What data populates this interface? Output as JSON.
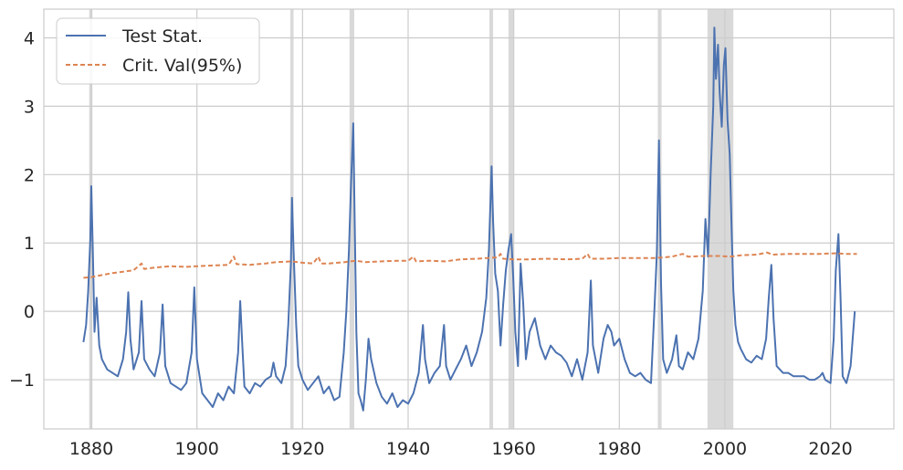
{
  "chart_data": {
    "type": "line",
    "title": "",
    "xlabel": "",
    "ylabel": "",
    "xlim": [
      1871,
      2032
    ],
    "ylim": [
      -1.72,
      4.42
    ],
    "x_ticks": [
      1880,
      1900,
      1920,
      1940,
      1960,
      1980,
      2000,
      2020
    ],
    "x_tick_labels": [
      "1880",
      "1900",
      "1920",
      "1940",
      "1960",
      "1980",
      "2000",
      "2020"
    ],
    "y_ticks": [
      -1,
      0,
      1,
      2,
      3,
      4
    ],
    "y_tick_labels": [
      "−1",
      "0",
      "1",
      "2",
      "3",
      "4"
    ],
    "grid": true,
    "legend_position": "top-left",
    "shaded_periods": [
      [
        1879.6,
        1880.2
      ],
      [
        1917.7,
        1918.3
      ],
      [
        1928.9,
        1929.8
      ],
      [
        1955.4,
        1956.1
      ],
      [
        1959.0,
        1959.9
      ],
      [
        1987.3,
        1988.0
      ],
      [
        1996.7,
        2001.6
      ]
    ],
    "shade_color": "#d9d9d9",
    "series": [
      {
        "name": "Test Stat.",
        "color": "#4c72b0",
        "style": "solid",
        "points": [
          [
            1878.5,
            -0.45
          ],
          [
            1879.0,
            -0.2
          ],
          [
            1879.4,
            0.3
          ],
          [
            1879.8,
            1.05
          ],
          [
            1880.0,
            1.83
          ],
          [
            1880.3,
            0.8
          ],
          [
            1880.6,
            -0.3
          ],
          [
            1881.0,
            0.2
          ],
          [
            1881.5,
            -0.5
          ],
          [
            1882.0,
            -0.7
          ],
          [
            1883.0,
            -0.85
          ],
          [
            1884.0,
            -0.9
          ],
          [
            1885.0,
            -0.95
          ],
          [
            1886.0,
            -0.7
          ],
          [
            1886.6,
            -0.3
          ],
          [
            1887.0,
            0.28
          ],
          [
            1887.4,
            -0.4
          ],
          [
            1888.0,
            -0.85
          ],
          [
            1889.0,
            -0.6
          ],
          [
            1889.5,
            0.15
          ],
          [
            1890.0,
            -0.7
          ],
          [
            1891.0,
            -0.85
          ],
          [
            1892.0,
            -0.95
          ],
          [
            1893.0,
            -0.6
          ],
          [
            1893.5,
            0.1
          ],
          [
            1894.0,
            -0.8
          ],
          [
            1895.0,
            -1.05
          ],
          [
            1896.0,
            -1.1
          ],
          [
            1897.0,
            -1.15
          ],
          [
            1898.0,
            -1.05
          ],
          [
            1899.0,
            -0.6
          ],
          [
            1899.5,
            0.35
          ],
          [
            1900.0,
            -0.7
          ],
          [
            1901.0,
            -1.2
          ],
          [
            1902.0,
            -1.3
          ],
          [
            1903.0,
            -1.4
          ],
          [
            1904.0,
            -1.2
          ],
          [
            1905.0,
            -1.3
          ],
          [
            1906.0,
            -1.1
          ],
          [
            1907.0,
            -1.2
          ],
          [
            1907.8,
            -0.6
          ],
          [
            1908.2,
            0.15
          ],
          [
            1908.6,
            -0.5
          ],
          [
            1909.0,
            -1.1
          ],
          [
            1910.0,
            -1.2
          ],
          [
            1911.0,
            -1.05
          ],
          [
            1912.0,
            -1.1
          ],
          [
            1913.0,
            -1.0
          ],
          [
            1914.0,
            -0.95
          ],
          [
            1914.5,
            -0.75
          ],
          [
            1915.0,
            -0.95
          ],
          [
            1916.0,
            -1.05
          ],
          [
            1916.8,
            -0.8
          ],
          [
            1917.3,
            -0.2
          ],
          [
            1917.8,
            0.7
          ],
          [
            1918.0,
            1.66
          ],
          [
            1918.3,
            0.9
          ],
          [
            1918.8,
            -0.2
          ],
          [
            1919.2,
            -0.8
          ],
          [
            1920.0,
            -1.0
          ],
          [
            1921.0,
            -1.15
          ],
          [
            1922.0,
            -1.05
          ],
          [
            1923.0,
            -0.95
          ],
          [
            1924.0,
            -1.2
          ],
          [
            1925.0,
            -1.1
          ],
          [
            1926.0,
            -1.3
          ],
          [
            1927.0,
            -1.25
          ],
          [
            1927.8,
            -0.6
          ],
          [
            1928.3,
            0.0
          ],
          [
            1928.8,
            0.9
          ],
          [
            1929.2,
            1.87
          ],
          [
            1929.6,
            2.75
          ],
          [
            1929.9,
            1.2
          ],
          [
            1930.2,
            -0.3
          ],
          [
            1930.6,
            -1.2
          ],
          [
            1931.0,
            -1.3
          ],
          [
            1931.5,
            -1.45
          ],
          [
            1932.0,
            -1.0
          ],
          [
            1932.5,
            -0.4
          ],
          [
            1933.0,
            -0.7
          ],
          [
            1934.0,
            -1.05
          ],
          [
            1935.0,
            -1.25
          ],
          [
            1936.0,
            -1.35
          ],
          [
            1937.0,
            -1.2
          ],
          [
            1938.0,
            -1.4
          ],
          [
            1939.0,
            -1.3
          ],
          [
            1940.0,
            -1.35
          ],
          [
            1941.0,
            -1.2
          ],
          [
            1942.0,
            -0.9
          ],
          [
            1942.8,
            -0.2
          ],
          [
            1943.2,
            -0.7
          ],
          [
            1944.0,
            -1.05
          ],
          [
            1945.0,
            -0.9
          ],
          [
            1946.0,
            -0.8
          ],
          [
            1946.8,
            -0.2
          ],
          [
            1947.2,
            -0.8
          ],
          [
            1948.0,
            -1.0
          ],
          [
            1949.0,
            -0.85
          ],
          [
            1950.0,
            -0.7
          ],
          [
            1951.0,
            -0.5
          ],
          [
            1952.0,
            -0.8
          ],
          [
            1953.0,
            -0.6
          ],
          [
            1954.0,
            -0.3
          ],
          [
            1954.8,
            0.2
          ],
          [
            1955.3,
            0.9
          ],
          [
            1955.8,
            2.12
          ],
          [
            1956.1,
            1.3
          ],
          [
            1956.5,
            0.55
          ],
          [
            1957.0,
            0.3
          ],
          [
            1957.5,
            -0.5
          ],
          [
            1958.0,
            0.1
          ],
          [
            1958.5,
            0.6
          ],
          [
            1959.0,
            0.9
          ],
          [
            1959.5,
            1.13
          ],
          [
            1959.9,
            0.5
          ],
          [
            1960.3,
            -0.3
          ],
          [
            1960.8,
            -0.8
          ],
          [
            1961.3,
            0.7
          ],
          [
            1961.8,
            0.1
          ],
          [
            1962.3,
            -0.7
          ],
          [
            1963.0,
            -0.3
          ],
          [
            1964.0,
            -0.1
          ],
          [
            1965.0,
            -0.5
          ],
          [
            1966.0,
            -0.7
          ],
          [
            1967.0,
            -0.5
          ],
          [
            1968.0,
            -0.6
          ],
          [
            1969.0,
            -0.65
          ],
          [
            1970.0,
            -0.75
          ],
          [
            1971.0,
            -0.95
          ],
          [
            1972.0,
            -0.7
          ],
          [
            1973.0,
            -1.0
          ],
          [
            1974.0,
            -0.6
          ],
          [
            1974.6,
            0.45
          ],
          [
            1975.0,
            -0.5
          ],
          [
            1976.0,
            -0.9
          ],
          [
            1977.0,
            -0.4
          ],
          [
            1977.8,
            -0.2
          ],
          [
            1978.5,
            -0.3
          ],
          [
            1979.0,
            -0.5
          ],
          [
            1980.0,
            -0.4
          ],
          [
            1981.0,
            -0.7
          ],
          [
            1982.0,
            -0.9
          ],
          [
            1983.0,
            -0.95
          ],
          [
            1984.0,
            -0.9
          ],
          [
            1985.0,
            -1.0
          ],
          [
            1986.0,
            -1.05
          ],
          [
            1986.7,
            0.1
          ],
          [
            1987.1,
            0.85
          ],
          [
            1987.5,
            2.5
          ],
          [
            1987.9,
            0.4
          ],
          [
            1988.3,
            -0.7
          ],
          [
            1989.0,
            -0.9
          ],
          [
            1990.0,
            -0.7
          ],
          [
            1990.8,
            -0.35
          ],
          [
            1991.3,
            -0.8
          ],
          [
            1992.0,
            -0.85
          ],
          [
            1993.0,
            -0.6
          ],
          [
            1994.0,
            -0.7
          ],
          [
            1995.0,
            -0.4
          ],
          [
            1995.8,
            0.3
          ],
          [
            1996.3,
            1.35
          ],
          [
            1996.8,
            0.8
          ],
          [
            1997.3,
            2.0
          ],
          [
            1997.8,
            3.0
          ],
          [
            1998.0,
            4.15
          ],
          [
            1998.3,
            3.4
          ],
          [
            1998.7,
            3.9
          ],
          [
            1999.0,
            3.2
          ],
          [
            1999.4,
            2.7
          ],
          [
            1999.8,
            3.6
          ],
          [
            2000.1,
            3.85
          ],
          [
            2000.5,
            2.8
          ],
          [
            2000.9,
            2.3
          ],
          [
            2001.3,
            1.1
          ],
          [
            2001.6,
            0.3
          ],
          [
            2002.0,
            -0.2
          ],
          [
            2002.5,
            -0.45
          ],
          [
            2003.0,
            -0.55
          ],
          [
            2004.0,
            -0.7
          ],
          [
            2005.0,
            -0.75
          ],
          [
            2006.0,
            -0.65
          ],
          [
            2007.0,
            -0.7
          ],
          [
            2007.8,
            -0.4
          ],
          [
            2008.3,
            0.2
          ],
          [
            2008.8,
            0.68
          ],
          [
            2009.2,
            -0.1
          ],
          [
            2009.8,
            -0.8
          ],
          [
            2011.0,
            -0.9
          ],
          [
            2012.0,
            -0.9
          ],
          [
            2013.0,
            -0.95
          ],
          [
            2014.0,
            -0.95
          ],
          [
            2015.0,
            -0.95
          ],
          [
            2016.0,
            -1.0
          ],
          [
            2017.0,
            -1.0
          ],
          [
            2018.0,
            -0.95
          ],
          [
            2018.5,
            -0.9
          ],
          [
            2019.0,
            -1.0
          ],
          [
            2020.0,
            -1.05
          ],
          [
            2020.6,
            -0.4
          ],
          [
            2021.0,
            0.6
          ],
          [
            2021.5,
            1.13
          ],
          [
            2021.9,
            0.2
          ],
          [
            2022.3,
            -0.95
          ],
          [
            2023.0,
            -1.05
          ],
          [
            2023.8,
            -0.8
          ],
          [
            2024.2,
            -0.4
          ],
          [
            2024.6,
            0.0
          ]
        ]
      },
      {
        "name": "Crit. Val(95%)",
        "color": "#dd8452",
        "style": "dashed",
        "points": [
          [
            1878.5,
            0.49
          ],
          [
            1880.0,
            0.5
          ],
          [
            1882.0,
            0.53
          ],
          [
            1884.0,
            0.56
          ],
          [
            1886.0,
            0.58
          ],
          [
            1888.0,
            0.6
          ],
          [
            1889.5,
            0.7
          ],
          [
            1890.0,
            0.62
          ],
          [
            1892.0,
            0.64
          ],
          [
            1895.0,
            0.66
          ],
          [
            1898.0,
            0.65
          ],
          [
            1900.0,
            0.66
          ],
          [
            1903.0,
            0.67
          ],
          [
            1906.0,
            0.68
          ],
          [
            1907.0,
            0.8
          ],
          [
            1907.5,
            0.69
          ],
          [
            1910.0,
            0.68
          ],
          [
            1913.0,
            0.7
          ],
          [
            1915.0,
            0.72
          ],
          [
            1918.0,
            0.73
          ],
          [
            1920.0,
            0.71
          ],
          [
            1922.0,
            0.7
          ],
          [
            1923.0,
            0.8
          ],
          [
            1923.5,
            0.7
          ],
          [
            1925.0,
            0.7
          ],
          [
            1928.0,
            0.72
          ],
          [
            1930.0,
            0.74
          ],
          [
            1932.0,
            0.72
          ],
          [
            1935.0,
            0.73
          ],
          [
            1938.0,
            0.74
          ],
          [
            1940.0,
            0.74
          ],
          [
            1941.0,
            0.8
          ],
          [
            1941.5,
            0.73
          ],
          [
            1944.0,
            0.74
          ],
          [
            1947.0,
            0.73
          ],
          [
            1950.0,
            0.76
          ],
          [
            1953.0,
            0.77
          ],
          [
            1955.0,
            0.78
          ],
          [
            1957.0,
            0.79
          ],
          [
            1957.5,
            0.84
          ],
          [
            1958.0,
            0.77
          ],
          [
            1960.0,
            0.76
          ],
          [
            1963.0,
            0.76
          ],
          [
            1966.0,
            0.77
          ],
          [
            1970.0,
            0.76
          ],
          [
            1973.0,
            0.77
          ],
          [
            1974.0,
            0.84
          ],
          [
            1974.5,
            0.77
          ],
          [
            1977.0,
            0.77
          ],
          [
            1980.0,
            0.78
          ],
          [
            1984.0,
            0.78
          ],
          [
            1987.0,
            0.78
          ],
          [
            1990.0,
            0.8
          ],
          [
            1992.0,
            0.84
          ],
          [
            1993.0,
            0.8
          ],
          [
            1996.0,
            0.81
          ],
          [
            1999.0,
            0.81
          ],
          [
            2001.0,
            0.8
          ],
          [
            2003.0,
            0.82
          ],
          [
            2006.0,
            0.83
          ],
          [
            2008.0,
            0.86
          ],
          [
            2009.0,
            0.83
          ],
          [
            2012.0,
            0.84
          ],
          [
            2015.0,
            0.84
          ],
          [
            2018.0,
            0.84
          ],
          [
            2021.0,
            0.85
          ],
          [
            2023.0,
            0.84
          ],
          [
            2025.0,
            0.84
          ]
        ]
      }
    ]
  }
}
